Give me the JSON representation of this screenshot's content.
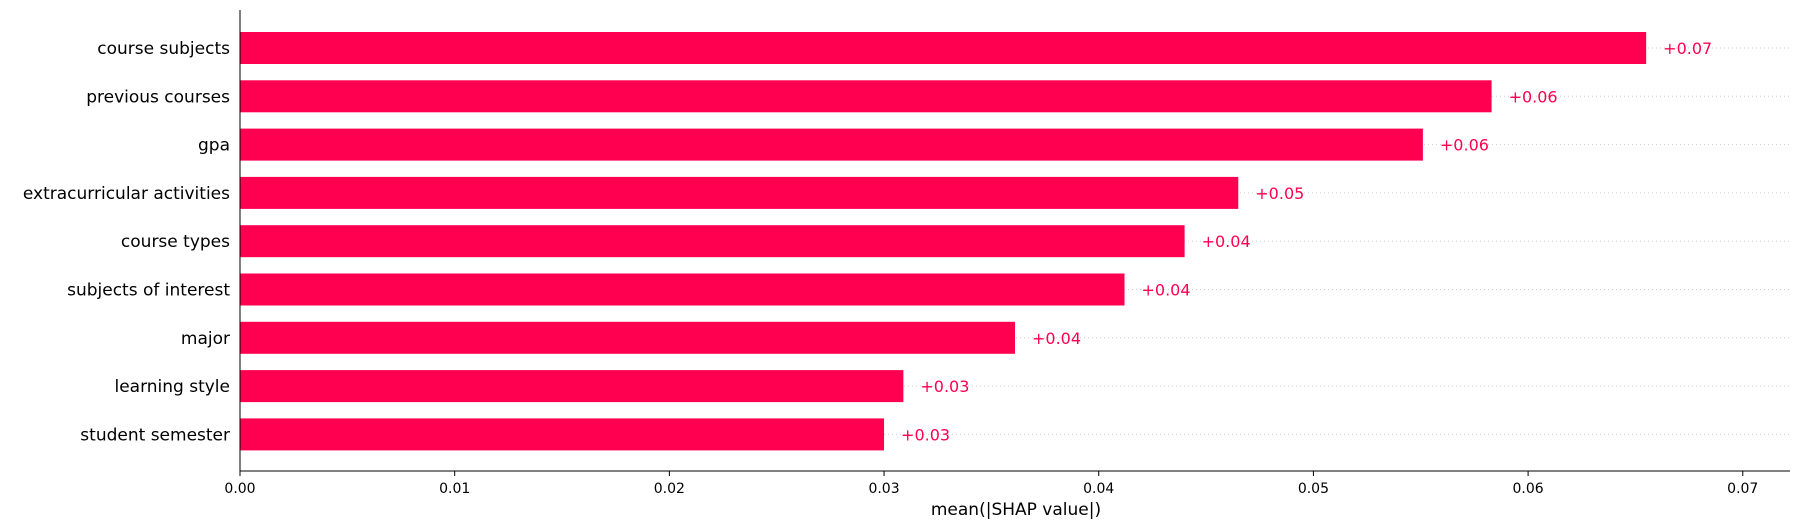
{
  "chart_data": {
    "type": "bar",
    "orientation": "horizontal",
    "categories": [
      "course subjects",
      "previous courses",
      "gpa",
      "extracurricular activities",
      "course types",
      "subjects of interest",
      "major",
      "learning style",
      "student semester"
    ],
    "values": [
      0.0655,
      0.0583,
      0.0551,
      0.0465,
      0.044,
      0.0412,
      0.0361,
      0.0309,
      0.03
    ],
    "value_labels": [
      "+0.07",
      "+0.06",
      "+0.06",
      "+0.05",
      "+0.04",
      "+0.04",
      "+0.04",
      "+0.03",
      "+0.03"
    ],
    "xlabel": "mean(|SHAP value|)",
    "ylabel": "",
    "title": "",
    "xlim": [
      0,
      0.0722
    ],
    "xticks": [
      0.0,
      0.01,
      0.02,
      0.03,
      0.04,
      0.05,
      0.06,
      0.07
    ],
    "xtick_labels": [
      "0.00",
      "0.01",
      "0.02",
      "0.03",
      "0.04",
      "0.05",
      "0.06",
      "0.07"
    ],
    "grid": "dotted horizontal guide per bar",
    "colors": {
      "bar": "#ff0051",
      "value_text": "#ff0051",
      "axis": "#000000",
      "guide": "#cccccc"
    }
  }
}
